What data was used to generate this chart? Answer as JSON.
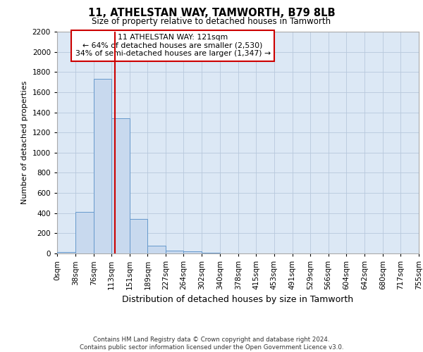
{
  "title_line1": "11, ATHELSTAN WAY, TAMWORTH, B79 8LB",
  "title_line2": "Size of property relative to detached houses in Tamworth",
  "xlabel": "Distribution of detached houses by size in Tamworth",
  "ylabel": "Number of detached properties",
  "bin_edges": [
    0,
    38,
    76,
    113,
    151,
    189,
    227,
    264,
    302,
    340,
    378,
    415,
    453,
    491,
    529,
    566,
    604,
    642,
    680,
    717,
    755
  ],
  "bar_heights": [
    15,
    410,
    1730,
    1340,
    340,
    75,
    30,
    20,
    5,
    2,
    1,
    0,
    0,
    0,
    0,
    0,
    0,
    0,
    0,
    0
  ],
  "bar_color": "#c8d9ee",
  "bar_edgecolor": "#6699cc",
  "grid_color": "#b8c8dc",
  "background_color": "#dce8f5",
  "property_size": 121,
  "red_line_color": "#cc0000",
  "annotation_text": "11 ATHELSTAN WAY: 121sqm\n← 64% of detached houses are smaller (2,530)\n34% of semi-detached houses are larger (1,347) →",
  "annotation_box_color": "#cc0000",
  "ylim": [
    0,
    2200
  ],
  "yticks": [
    0,
    200,
    400,
    600,
    800,
    1000,
    1200,
    1400,
    1600,
    1800,
    2000,
    2200
  ],
  "footer_line1": "Contains HM Land Registry data © Crown copyright and database right 2024.",
  "footer_line2": "Contains public sector information licensed under the Open Government Licence v3.0."
}
